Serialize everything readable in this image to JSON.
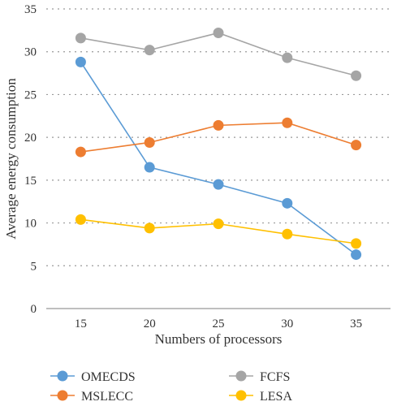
{
  "chart_data": {
    "type": "line",
    "title": "",
    "xlabel": "Numbers of processors",
    "ylabel": "Average energy consumption",
    "categories": [
      "15",
      "20",
      "25",
      "30",
      "35"
    ],
    "ylim": [
      0,
      35
    ],
    "yticks": [
      0,
      5,
      10,
      15,
      20,
      25,
      30,
      35
    ],
    "grid": "horizontal-dotted",
    "legend_position": "bottom",
    "series": [
      {
        "name": "OMECDS",
        "color": "#5b9bd5",
        "values": [
          28.8,
          16.5,
          14.5,
          12.3,
          6.3
        ]
      },
      {
        "name": "MSLECC",
        "color": "#ed7d31",
        "values": [
          18.3,
          19.4,
          21.4,
          21.7,
          19.1
        ]
      },
      {
        "name": "FCFS",
        "color": "#a5a5a5",
        "values": [
          31.6,
          30.2,
          32.2,
          29.3,
          27.2
        ]
      },
      {
        "name": "LESA",
        "color": "#ffc000",
        "values": [
          10.4,
          9.4,
          9.9,
          8.7,
          7.6
        ]
      }
    ]
  }
}
